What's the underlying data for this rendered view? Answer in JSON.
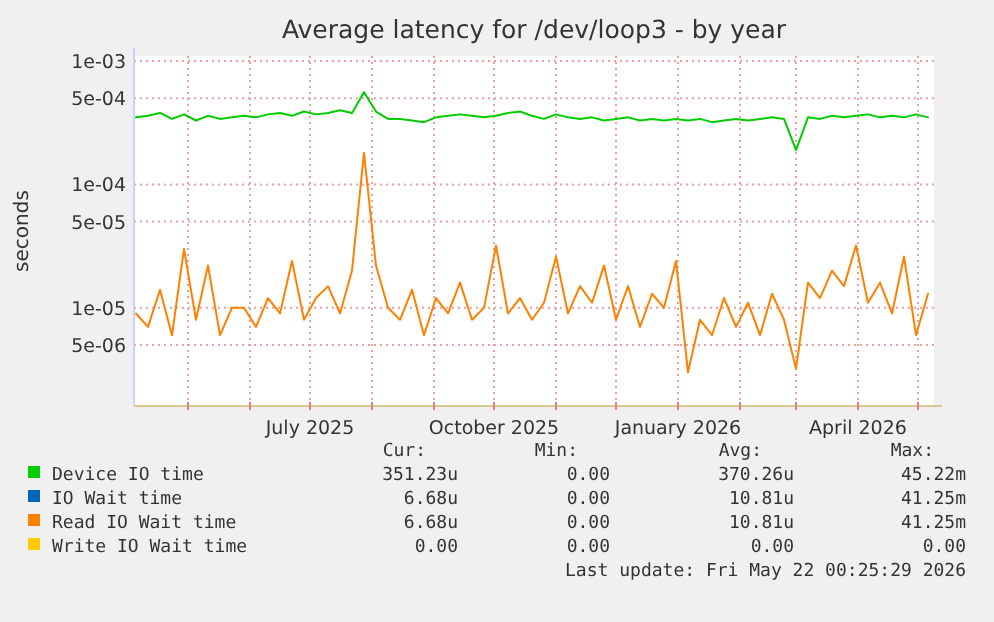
{
  "chart_data": {
    "type": "line",
    "title": "Average latency for /dev/loop3 - by year",
    "ylabel": "seconds",
    "log": "y",
    "grid": true,
    "legend": "bottom left",
    "marker": "none",
    "line_style": "solid",
    "xlim": [
      "2025-04-04",
      "2026-05-09"
    ],
    "ylim": [
      1.6e-06,
      0.0011
    ],
    "yticks": [
      {
        "value": 0.001,
        "label": "1e-03"
      },
      {
        "value": 0.0005,
        "label": "5e-04"
      },
      {
        "value": 0.0001,
        "label": "1e-04"
      },
      {
        "value": 5e-05,
        "label": "5e-05"
      },
      {
        "value": 1e-05,
        "label": "1e-05"
      },
      {
        "value": 5e-06,
        "label": "5e-06"
      }
    ],
    "xticks": [
      {
        "value": "2025-05-01",
        "label": null
      },
      {
        "value": "2025-06-01",
        "label": null
      },
      {
        "value": "2025-07-01",
        "label": "July 2025"
      },
      {
        "value": "2025-08-01",
        "label": null
      },
      {
        "value": "2025-09-01",
        "label": null
      },
      {
        "value": "2025-10-01",
        "label": "October 2025"
      },
      {
        "value": "2025-11-01",
        "label": null
      },
      {
        "value": "2025-12-01",
        "label": null
      },
      {
        "value": "2026-01-01",
        "label": "January 2026"
      },
      {
        "value": "2026-02-01",
        "label": null
      },
      {
        "value": "2026-03-01",
        "label": null
      },
      {
        "value": "2026-04-01",
        "label": "April 2026"
      },
      {
        "value": "2026-05-01",
        "label": null
      }
    ],
    "x": [
      "2025-04-05",
      "2025-04-11",
      "2025-04-17",
      "2025-04-23",
      "2025-04-29",
      "2025-05-05",
      "2025-05-11",
      "2025-05-17",
      "2025-05-23",
      "2025-05-29",
      "2025-06-04",
      "2025-06-10",
      "2025-06-16",
      "2025-06-22",
      "2025-06-28",
      "2025-07-04",
      "2025-07-10",
      "2025-07-16",
      "2025-07-22",
      "2025-07-28",
      "2025-08-03",
      "2025-08-09",
      "2025-08-15",
      "2025-08-21",
      "2025-08-27",
      "2025-09-02",
      "2025-09-08",
      "2025-09-14",
      "2025-09-20",
      "2025-09-26",
      "2025-10-02",
      "2025-10-08",
      "2025-10-14",
      "2025-10-20",
      "2025-10-26",
      "2025-11-01",
      "2025-11-07",
      "2025-11-13",
      "2025-11-19",
      "2025-11-25",
      "2025-12-01",
      "2025-12-07",
      "2025-12-13",
      "2025-12-19",
      "2025-12-25",
      "2025-12-31",
      "2026-01-06",
      "2026-01-12",
      "2026-01-18",
      "2026-01-24",
      "2026-01-30",
      "2026-02-05",
      "2026-02-11",
      "2026-02-17",
      "2026-02-23",
      "2026-03-01",
      "2026-03-07",
      "2026-03-13",
      "2026-03-19",
      "2026-03-25",
      "2026-03-31",
      "2026-04-06",
      "2026-04-12",
      "2026-04-18",
      "2026-04-24",
      "2026-04-30",
      "2026-05-06"
    ],
    "series": [
      {
        "name": "Device IO time",
        "color": "#00cc00",
        "values": [
          0.00035,
          0.00036,
          0.00038,
          0.00034,
          0.00037,
          0.00033,
          0.00036,
          0.00034,
          0.00035,
          0.00036,
          0.00035,
          0.00037,
          0.00038,
          0.00036,
          0.00039,
          0.00037,
          0.00038,
          0.0004,
          0.00038,
          0.00056,
          0.00039,
          0.00034,
          0.00034,
          0.00033,
          0.00032,
          0.00035,
          0.00036,
          0.00037,
          0.00036,
          0.00035,
          0.00036,
          0.00038,
          0.00039,
          0.00036,
          0.00034,
          0.00037,
          0.00035,
          0.00034,
          0.00035,
          0.00033,
          0.00034,
          0.00035,
          0.00033,
          0.00034,
          0.00033,
          0.00034,
          0.00033,
          0.00034,
          0.00032,
          0.00033,
          0.00034,
          0.00033,
          0.00034,
          0.00035,
          0.00034,
          0.00019,
          0.00035,
          0.00034,
          0.00036,
          0.00035,
          0.00036,
          0.00037,
          0.00035,
          0.00036,
          0.00035,
          0.00037,
          0.00035
        ]
      },
      {
        "name": "IO Wait time",
        "color": "#0066b3",
        "values": [
          null,
          null,
          null,
          null,
          null,
          null,
          null,
          null,
          null,
          null,
          null,
          null,
          null,
          null,
          null,
          null,
          null,
          null,
          null,
          null,
          null,
          null,
          null,
          null,
          null,
          null,
          null,
          null,
          null,
          null,
          null,
          null,
          null,
          null,
          null,
          null,
          null,
          null,
          null,
          null,
          null,
          null,
          null,
          null,
          null,
          null,
          null,
          null,
          null,
          null,
          null,
          null,
          null,
          null,
          null,
          null,
          null,
          null,
          null,
          null,
          null,
          null,
          null,
          null,
          null,
          null,
          null
        ]
      },
      {
        "name": "Read IO Wait time",
        "color": "#ff8000",
        "values": [
          9e-06,
          7e-06,
          1.4e-05,
          6e-06,
          3e-05,
          8e-06,
          2.2e-05,
          6e-06,
          1e-05,
          1e-05,
          7e-06,
          1.2e-05,
          9e-06,
          2.4e-05,
          8e-06,
          1.2e-05,
          1.5e-05,
          9e-06,
          2e-05,
          0.00018,
          2.2e-05,
          1e-05,
          8e-06,
          1.4e-05,
          6e-06,
          1.2e-05,
          9e-06,
          1.6e-05,
          8e-06,
          1e-05,
          3.2e-05,
          9e-06,
          1.2e-05,
          8e-06,
          1.1e-05,
          2.6e-05,
          9e-06,
          1.5e-05,
          1.1e-05,
          2.2e-05,
          8e-06,
          1.5e-05,
          7e-06,
          1.3e-05,
          1e-05,
          2.4e-05,
          3e-06,
          8e-06,
          6e-06,
          1.2e-05,
          7e-06,
          1.1e-05,
          6e-06,
          1.3e-05,
          8e-06,
          3.2e-06,
          1.6e-05,
          1.2e-05,
          2e-05,
          1.5e-05,
          3.2e-05,
          1.1e-05,
          1.6e-05,
          9e-06,
          2.6e-05,
          6e-06,
          1.3e-05
        ]
      },
      {
        "name": "Write IO Wait time",
        "color": "#ffcc00",
        "values": [
          null,
          null,
          null,
          null,
          null,
          null,
          null,
          null,
          null,
          null,
          null,
          null,
          null,
          null,
          null,
          null,
          null,
          null,
          null,
          null,
          null,
          null,
          null,
          null,
          null,
          null,
          null,
          null,
          null,
          null,
          null,
          null,
          null,
          null,
          null,
          null,
          null,
          null,
          null,
          null,
          null,
          null,
          null,
          null,
          null,
          null,
          null,
          null,
          null,
          null,
          null,
          null,
          null,
          null,
          null,
          null,
          null,
          null,
          null,
          null,
          null,
          null,
          null,
          null,
          null,
          null,
          null
        ]
      }
    ],
    "annotations": [
      "Cur:",
      "Min:",
      "Avg:",
      "Max:",
      "351.23u",
      "0.00",
      "370.26u",
      "45.22m",
      "6.68u",
      "0.00",
      "10.81u",
      "41.25m",
      "6.68u",
      "0.00",
      "10.81u",
      "41.25m",
      "0.00",
      "0.00",
      "0.00",
      "0.00",
      "Last update: Fri May 22 00:25:29 2026"
    ]
  }
}
